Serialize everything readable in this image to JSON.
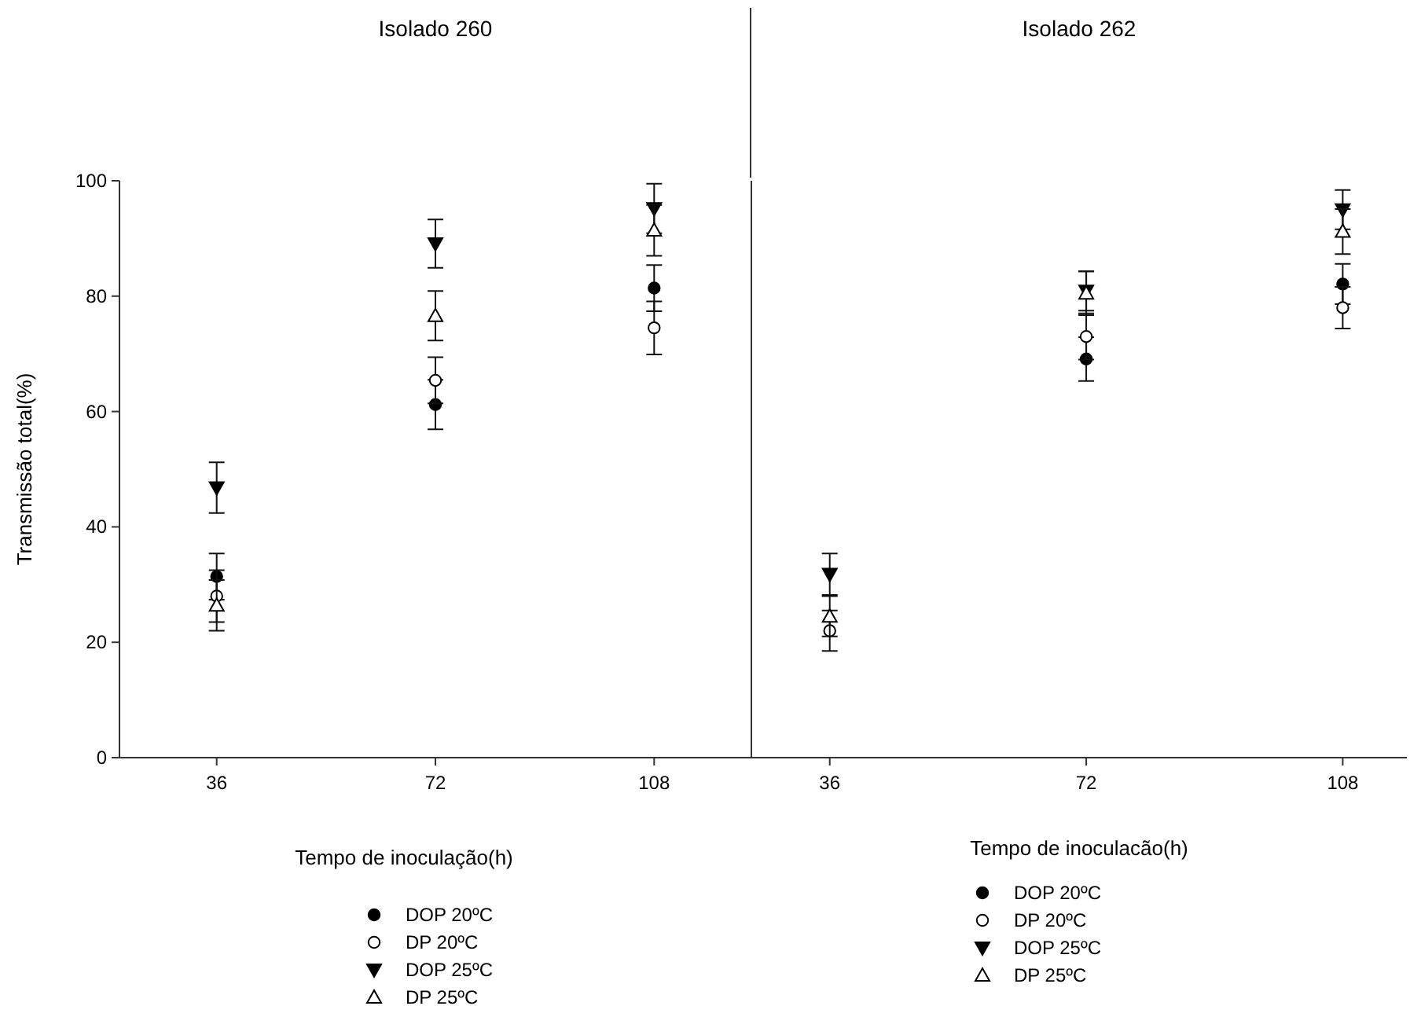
{
  "chart_data": [
    {
      "type": "scatter",
      "title": "Isolado 260",
      "xlabel": "Tempo de inoculação(h)",
      "ylabel": "Transmissão total(%)",
      "x": [
        36,
        72,
        108
      ],
      "xlim": [
        20,
        124
      ],
      "xticks": [
        36,
        72,
        108
      ],
      "ylim": [
        0,
        100
      ],
      "yticks": [
        0,
        20,
        40,
        60,
        80,
        100
      ],
      "legend": "bottom",
      "grid": false,
      "series": [
        {
          "name": "DOP 20ºC",
          "color": "#000000",
          "marker": "circle",
          "values": [
            31.4,
            61.2,
            81.4
          ],
          "errors": [
            4,
            4.3,
            4
          ]
        },
        {
          "name": "DP 20ºC",
          "color": "#000000",
          "marker": "circle-open",
          "values": [
            28,
            65.4,
            74.5
          ],
          "errors": [
            4.5,
            4,
            4.6
          ]
        },
        {
          "name": "DOP 25ºC",
          "color": "#000000",
          "marker": "triangle-down",
          "values": [
            46.8,
            89.1,
            95.2
          ],
          "errors": [
            4.4,
            4.2,
            4.3
          ]
        },
        {
          "name": "DP 25ºC",
          "color": "#000000",
          "marker": "triangle-open",
          "values": [
            26.4,
            76.6,
            91.4
          ],
          "errors": [
            4.4,
            4.3,
            4.4
          ]
        }
      ]
    },
    {
      "type": "scatter",
      "title": "Isolado 262",
      "xlabel": "Tempo de inoculacão(h)",
      "x": [
        36,
        72,
        108
      ],
      "xlim": [
        25,
        117
      ],
      "xticks": [
        36,
        72,
        108
      ],
      "ylim": [
        0,
        100
      ],
      "tick_labels": "x",
      "legend": "bottom",
      "grid": false,
      "series": [
        {
          "name": "DOP 20ºC",
          "color": "#000000",
          "marker": "circle",
          "values": [
            null,
            69.1,
            82.1
          ],
          "errors": [
            null,
            3.8,
            3.5
          ]
        },
        {
          "name": "DP 20ºC",
          "color": "#000000",
          "marker": "circle-open",
          "values": [
            22,
            73,
            78
          ],
          "errors": [
            3.5,
            4,
            3.6
          ]
        },
        {
          "name": "DOP 25ºC",
          "color": "#000000",
          "marker": "triangle-down",
          "values": [
            31.8,
            80.9,
            95
          ],
          "errors": [
            3.6,
            3.4,
            3.4
          ]
        },
        {
          "name": "DP 25ºC",
          "color": "#000000",
          "marker": "triangle-open",
          "values": [
            24.5,
            80.5,
            91.2
          ],
          "errors": [
            3.5,
            3.8,
            3.9
          ]
        }
      ]
    }
  ]
}
